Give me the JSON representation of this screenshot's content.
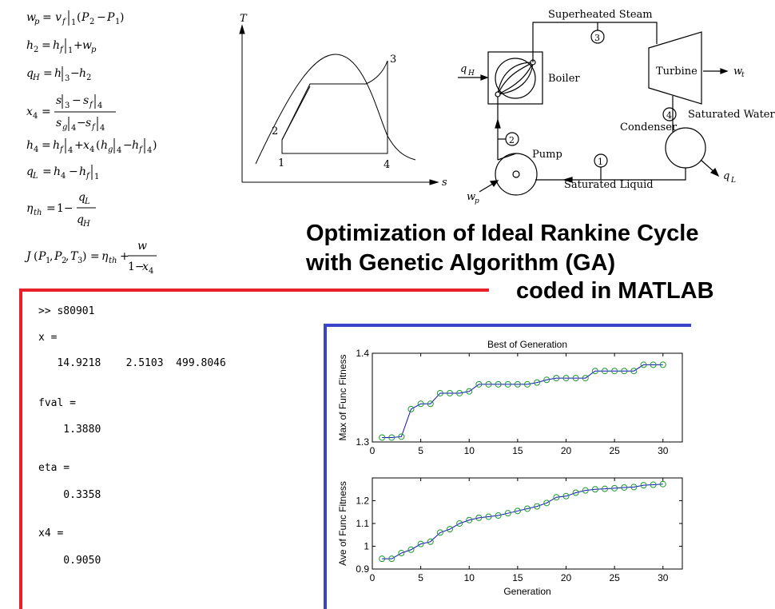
{
  "equations": {
    "wp": "w_p = v_f|1 (P2 − P1)",
    "h2": "h2 = h_f|1 + w_p",
    "qH": "q_H = h|3 − h2",
    "x4_num": "s|3 − s_f|4",
    "x4_den": "s_g|4 − s_f|4",
    "h4": "h4 = h_f|4 + x4 (h_g|4 − h_f|4)",
    "qL": "q_L = h4 − h_f|1",
    "eta": "η_th = 1 − q_L / q_H",
    "J": "J(P1, P2, T3) = η_th + w / (1 − x4)"
  },
  "ts_diagram": {
    "y_axis": "T",
    "x_axis": "s",
    "points": [
      "1",
      "2",
      "3",
      "4"
    ]
  },
  "cycle_diagram": {
    "labels": {
      "superheated_steam": "Superheated Steam",
      "boiler": "Boiler",
      "turbine": "Turbine",
      "saturated_water": "Saturated Water",
      "condenser": "Condenser",
      "pump": "Pump",
      "saturated_liquid": "Saturated Liquid",
      "qH": "q",
      "qH_sub": "H",
      "qL": "q",
      "qL_sub": "L",
      "wt": "w",
      "wt_sub": "t",
      "wp": "w",
      "wp_sub": "p"
    },
    "states": [
      "1",
      "2",
      "3",
      "4"
    ]
  },
  "title": {
    "line1": "Optimization of Ideal Rankine Cycle",
    "line2": "with Genetic Algorithm (GA)",
    "line3": "coded in  MATLAB"
  },
  "console": {
    "cmd": ">> s80901",
    "x_label": "x =",
    "x_values": "   14.9218    2.5103  499.8046",
    "fval_label": "fval =",
    "fval_value": "    1.3880",
    "eta_label": "eta =",
    "eta_value": "    0.3358",
    "x4_label": "x4 =",
    "x4_value": "    0.9050"
  },
  "colors": {
    "red_bracket": "#e8202a",
    "blue_bracket": "#3a44c8",
    "series_line": "#1010c8",
    "marker": "#1a9a2a"
  },
  "chart_data": [
    {
      "type": "line",
      "title": "Best of Generation",
      "xlabel": "",
      "ylabel": "Max of Func Fitness",
      "xlim": [
        0,
        32
      ],
      "ylim": [
        1.3,
        1.4
      ],
      "xticks": [
        0,
        5,
        10,
        15,
        20,
        25,
        30
      ],
      "yticks": [
        1.3,
        1.4
      ],
      "x": [
        1,
        2,
        3,
        4,
        5,
        6,
        7,
        8,
        9,
        10,
        11,
        12,
        13,
        14,
        15,
        16,
        17,
        18,
        19,
        20,
        21,
        22,
        23,
        24,
        25,
        26,
        27,
        28,
        29,
        30
      ],
      "values": [
        1.305,
        1.305,
        1.306,
        1.337,
        1.343,
        1.343,
        1.355,
        1.355,
        1.355,
        1.357,
        1.365,
        1.365,
        1.365,
        1.365,
        1.365,
        1.365,
        1.367,
        1.37,
        1.372,
        1.372,
        1.372,
        1.372,
        1.38,
        1.38,
        1.38,
        1.38,
        1.38,
        1.387,
        1.387,
        1.387
      ]
    },
    {
      "type": "line",
      "title": "",
      "xlabel": "Generation",
      "ylabel": "Ave of Func Fitness",
      "xlim": [
        0,
        32
      ],
      "ylim": [
        0.9,
        1.3
      ],
      "xticks": [
        0,
        5,
        10,
        15,
        20,
        25,
        30
      ],
      "yticks": [
        0.9,
        1,
        1.1,
        1.2
      ],
      "x": [
        1,
        2,
        3,
        4,
        5,
        6,
        7,
        8,
        9,
        10,
        11,
        12,
        13,
        14,
        15,
        16,
        17,
        18,
        19,
        20,
        21,
        22,
        23,
        24,
        25,
        26,
        27,
        28,
        29,
        30
      ],
      "values": [
        0.945,
        0.945,
        0.97,
        0.985,
        1.01,
        1.02,
        1.06,
        1.075,
        1.1,
        1.115,
        1.125,
        1.13,
        1.135,
        1.145,
        1.155,
        1.165,
        1.175,
        1.19,
        1.215,
        1.22,
        1.235,
        1.245,
        1.25,
        1.252,
        1.255,
        1.258,
        1.26,
        1.268,
        1.27,
        1.273
      ]
    }
  ]
}
